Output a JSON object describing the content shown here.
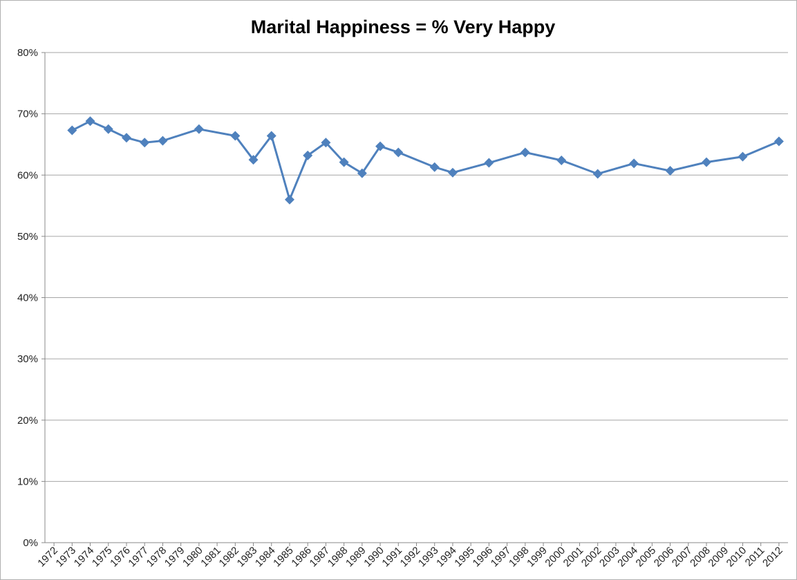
{
  "chart_data": {
    "type": "line",
    "title": "Marital Happiness = % Very Happy",
    "x": [
      1973,
      1974,
      1975,
      1976,
      1977,
      1978,
      1980,
      1982,
      1983,
      1984,
      1985,
      1986,
      1987,
      1988,
      1989,
      1990,
      1991,
      1993,
      1994,
      1996,
      1998,
      2000,
      2002,
      2004,
      2006,
      2008,
      2010,
      2012
    ],
    "series": [
      {
        "name": "% Very Happy",
        "color": "#4f81bd",
        "values": [
          67.3,
          68.8,
          67.5,
          66.1,
          65.3,
          65.6,
          67.5,
          66.4,
          62.5,
          66.4,
          56.0,
          63.2,
          65.3,
          62.1,
          60.3,
          64.7,
          63.7,
          61.3,
          60.4,
          62.0,
          63.7,
          62.4,
          60.2,
          61.9,
          60.7,
          62.1,
          63.0,
          65.5
        ]
      }
    ],
    "xlim": [
      1971.5,
      2012.5
    ],
    "xticks": [
      1972,
      1973,
      1974,
      1975,
      1976,
      1977,
      1978,
      1979,
      1980,
      1981,
      1982,
      1983,
      1984,
      1985,
      1986,
      1987,
      1988,
      1989,
      1990,
      1991,
      1992,
      1993,
      1994,
      1995,
      1996,
      1997,
      1998,
      1999,
      2000,
      2001,
      2002,
      2003,
      2004,
      2005,
      2006,
      2007,
      2008,
      2009,
      2010,
      2011,
      2012
    ],
    "ylim": [
      0,
      80
    ],
    "yticks": [
      {
        "value": 0,
        "label": "0%"
      },
      {
        "value": 10,
        "label": "10%"
      },
      {
        "value": 20,
        "label": "20%"
      },
      {
        "value": 30,
        "label": "30%"
      },
      {
        "value": 40,
        "label": "40%"
      },
      {
        "value": 50,
        "label": "50%"
      },
      {
        "value": 60,
        "label": "60%"
      },
      {
        "value": 70,
        "label": "70%"
      },
      {
        "value": 80,
        "label": "80%"
      }
    ],
    "grid": true
  }
}
